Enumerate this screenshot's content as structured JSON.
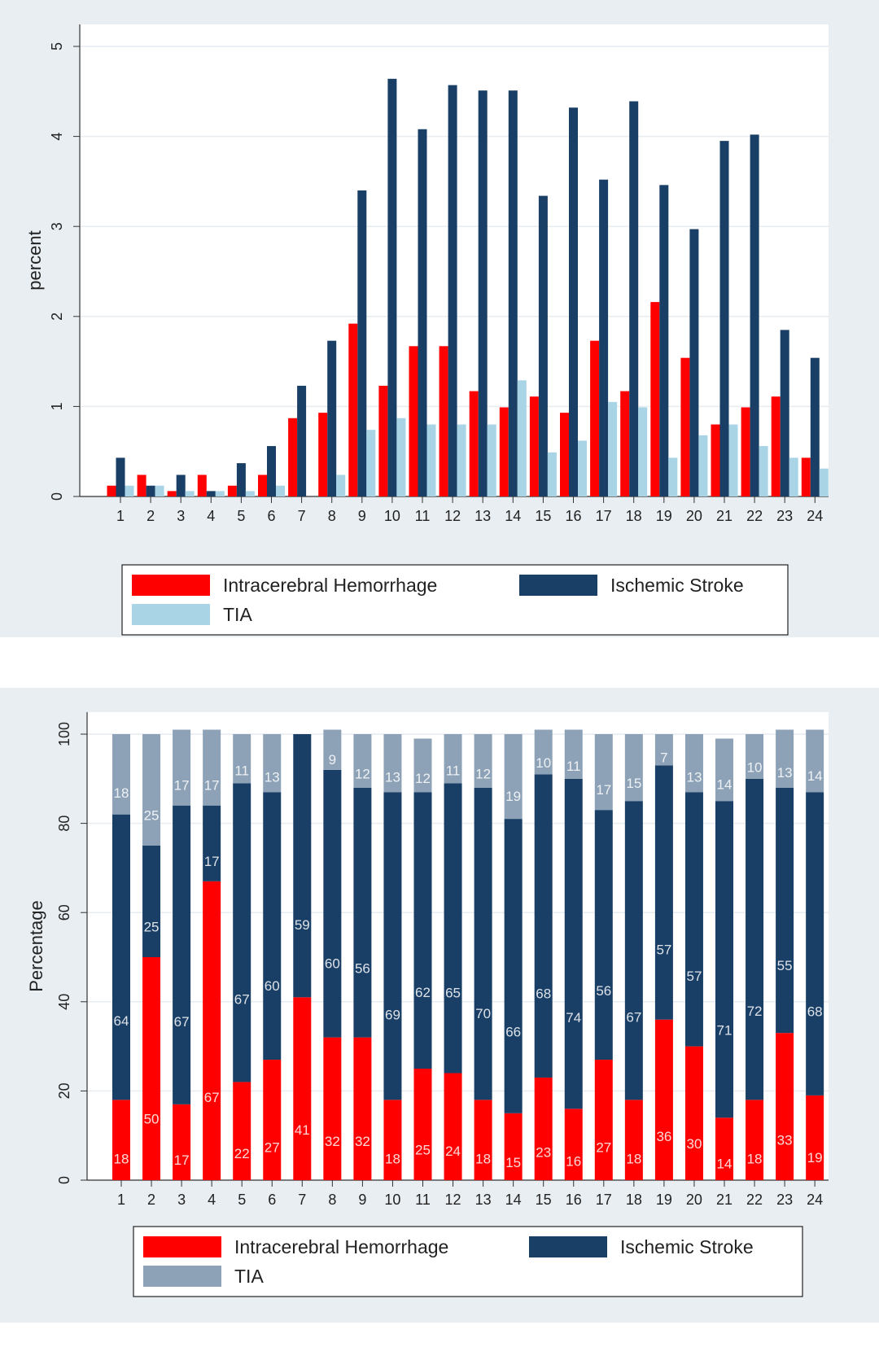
{
  "chart_data": [
    {
      "type": "bar",
      "categories": [
        "1",
        "2",
        "3",
        "4",
        "5",
        "6",
        "7",
        "8",
        "9",
        "10",
        "11",
        "12",
        "13",
        "14",
        "15",
        "16",
        "17",
        "18",
        "19",
        "20",
        "21",
        "22",
        "23",
        "24"
      ],
      "series": [
        {
          "name": "Intracerebral Hemorrhage",
          "color": "#ff0000",
          "values": [
            0.12,
            0.24,
            0.06,
            0.24,
            0.12,
            0.24,
            0.87,
            0.93,
            1.92,
            1.23,
            1.67,
            1.67,
            1.17,
            0.99,
            1.11,
            0.93,
            1.73,
            1.17,
            2.16,
            1.54,
            0.8,
            0.99,
            1.11,
            0.43
          ]
        },
        {
          "name": "Ischemic Stroke",
          "color": "#1a3f66",
          "values": [
            0.43,
            0.12,
            0.24,
            0.06,
            0.37,
            0.56,
            1.23,
            1.73,
            3.4,
            4.64,
            4.08,
            4.57,
            4.51,
            4.51,
            3.34,
            4.32,
            3.52,
            4.39,
            3.46,
            2.97,
            3.95,
            4.02,
            1.85,
            1.54
          ]
        },
        {
          "name": "TIA",
          "color": "#a8d4e6",
          "values": [
            0.12,
            0.12,
            0.06,
            0.06,
            0.06,
            0.12,
            0,
            0.24,
            0.74,
            0.87,
            0.8,
            0.8,
            0.8,
            1.29,
            0.49,
            0.62,
            1.05,
            0.99,
            0.43,
            0.68,
            0.8,
            0.56,
            0.43,
            0.31
          ]
        }
      ],
      "ylabel": "percent",
      "xlabel": "",
      "ylim": [
        0,
        5
      ],
      "yticks": [
        "0",
        "1",
        "2",
        "3",
        "4",
        "5"
      ],
      "grid": true,
      "legend": "bottom"
    },
    {
      "type": "bar",
      "stacked": true,
      "categories": [
        "1",
        "2",
        "3",
        "4",
        "5",
        "6",
        "7",
        "8",
        "9",
        "10",
        "11",
        "12",
        "13",
        "14",
        "15",
        "16",
        "17",
        "18",
        "19",
        "20",
        "21",
        "22",
        "23",
        "24"
      ],
      "series": [
        {
          "name": "Intracerebral Hemorrhage",
          "color": "#ff0000",
          "values": [
            18,
            50,
            17,
            67,
            22,
            27,
            41,
            32,
            32,
            18,
            25,
            24,
            18,
            15,
            23,
            16,
            27,
            18,
            36,
            30,
            14,
            18,
            33,
            19
          ]
        },
        {
          "name": "Ischemic Stroke",
          "color": "#1a3f66",
          "values": [
            64,
            25,
            67,
            17,
            67,
            60,
            59,
            60,
            56,
            69,
            62,
            65,
            70,
            66,
            68,
            74,
            56,
            67,
            57,
            57,
            71,
            72,
            55,
            68
          ]
        },
        {
          "name": "TIA",
          "color": "#8da2b7",
          "values": [
            18,
            25,
            17,
            17,
            11,
            13,
            0,
            9,
            12,
            13,
            12,
            11,
            12,
            19,
            10,
            11,
            17,
            15,
            7,
            13,
            14,
            10,
            13,
            14
          ]
        }
      ],
      "ylabel": "Percentage",
      "xlabel": "",
      "ylim": [
        0,
        100
      ],
      "yticks": [
        "0",
        "20",
        "40",
        "60",
        "80",
        "100"
      ],
      "grid": true,
      "legend": "bottom"
    }
  ]
}
